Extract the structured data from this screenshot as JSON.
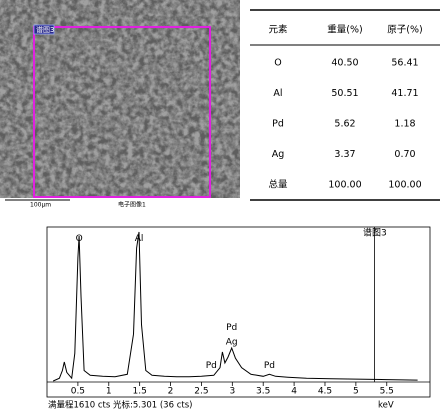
{
  "image": {
    "label": "谱图3",
    "scale_bar": "100µm",
    "caption": "电子图像1"
  },
  "table": {
    "header": [
      "元素",
      "重量(%)",
      "原子(%)"
    ],
    "rows": [
      [
        "O",
        "40.50",
        "56.41"
      ],
      [
        "Al",
        "50.51",
        "41.71"
      ],
      [
        "Pd",
        "5.62",
        "1.18"
      ],
      [
        "Ag",
        "3.37",
        "0.70"
      ],
      [
        "总量",
        "100.00",
        "100.00"
      ]
    ]
  },
  "chart_data": {
    "type": "line",
    "label": "谱图3",
    "x_unit": "keV",
    "footer": "满量程1610 cts 光标:5.301 (36 cts)",
    "x": [
      0.1,
      0.2,
      0.25,
      0.28,
      0.32,
      0.4,
      0.45,
      0.5,
      0.52,
      0.55,
      0.6,
      0.7,
      0.9,
      1.1,
      1.3,
      1.4,
      1.45,
      1.49,
      1.53,
      1.6,
      1.7,
      1.9,
      2.1,
      2.3,
      2.5,
      2.7,
      2.8,
      2.84,
      2.88,
      2.93,
      2.99,
      3.05,
      3.15,
      3.3,
      3.5,
      3.6,
      3.7,
      3.9,
      4.2,
      4.6,
      5.0,
      5.5,
      6.0
    ],
    "values": [
      10,
      40,
      120,
      209,
      100,
      40,
      300,
      1300,
      1526,
      900,
      120,
      70,
      60,
      55,
      80,
      500,
      1400,
      1568,
      600,
      120,
      70,
      60,
      55,
      55,
      60,
      70,
      150,
      314,
      200,
      260,
      355,
      250,
      150,
      80,
      60,
      80,
      60,
      50,
      40,
      35,
      30,
      25,
      20
    ],
    "color": "#000000",
    "xlim": [
      0,
      6.2
    ],
    "ylim": [
      0,
      1610
    ],
    "xticks": [
      0.5,
      1,
      1.5,
      2,
      2.5,
      3,
      3.5,
      4,
      4.5,
      5,
      5.5
    ],
    "cursor": 5.301,
    "annotations": [
      {
        "text": "O",
        "x": 0.52,
        "y": 1500
      },
      {
        "text": "Al",
        "x": 1.49,
        "y": 1500
      },
      {
        "text": "Pd",
        "x": 2.99,
        "y": 570
      },
      {
        "text": "Ag",
        "x": 2.99,
        "y": 420
      },
      {
        "text": "Pd",
        "x": 2.66,
        "y": 170
      },
      {
        "text": "Pd",
        "x": 3.6,
        "y": 170
      }
    ]
  }
}
